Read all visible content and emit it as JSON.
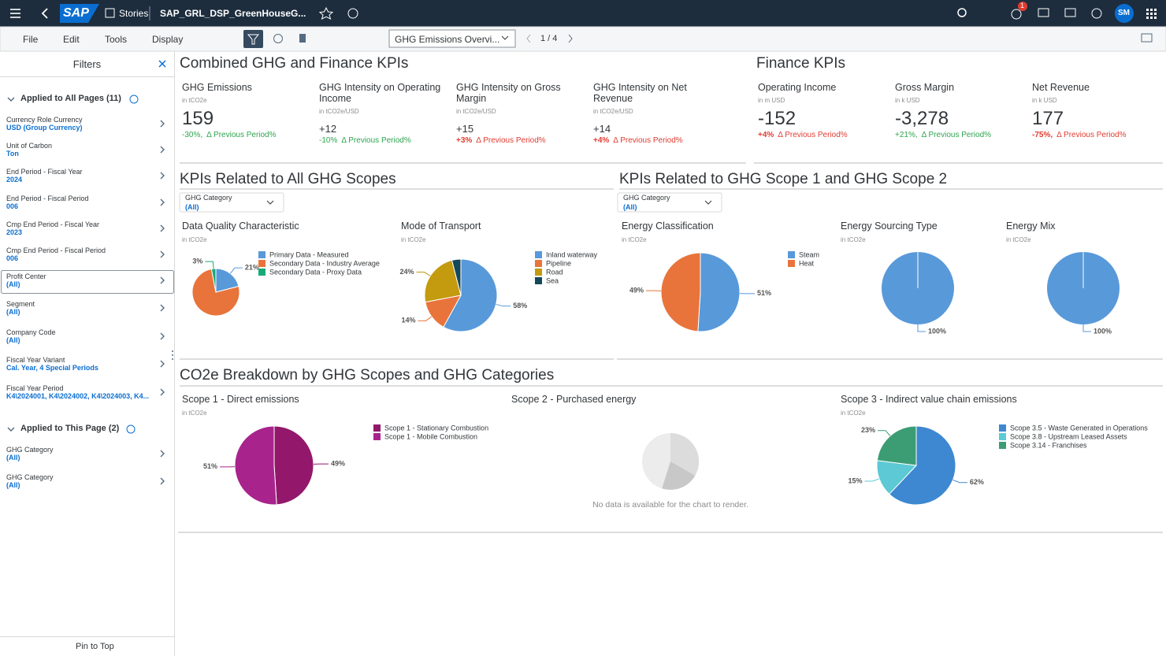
{
  "shell": {
    "brand": "SAP",
    "app": "Stories",
    "story": "SAP_GRL_DSP_GreenHouseG...",
    "badge": "1",
    "user": "SM"
  },
  "toolbar": {
    "menus": [
      "File",
      "Edit",
      "Tools",
      "Display"
    ],
    "page": "GHG Emissions Overvi...",
    "pager": "1 / 4"
  },
  "filters": {
    "title": "Filters",
    "pin": "Pin to Top",
    "groups": [
      {
        "title": "Applied to All Pages (11)",
        "items": [
          {
            "label": "Currency Role Currency",
            "value": "USD (Group Currency)"
          },
          {
            "label": "Unit of Carbon",
            "value": "Ton"
          },
          {
            "label": "End Period - Fiscal Year",
            "value": "2024"
          },
          {
            "label": "End Period - Fiscal Period",
            "value": "006"
          },
          {
            "label": "Cmp End Period - Fiscal Year",
            "value": "2023"
          },
          {
            "label": "Cmp End Period - Fiscal Period",
            "value": "006"
          },
          {
            "label": "Profit Center",
            "value": "(All)"
          },
          {
            "label": "Segment",
            "value": "(All)"
          },
          {
            "label": "Company Code",
            "value": "(All)"
          },
          {
            "label": "Fiscal Year Variant",
            "value": "Cal. Year, 4 Special Periods"
          },
          {
            "label": "Fiscal Year Period",
            "value": "K4\\2024001, K4\\2024002, K4\\2024003, K4..."
          }
        ]
      },
      {
        "title": "Applied to This Page (2)",
        "items": [
          {
            "label": "GHG Category",
            "value": "(All)"
          },
          {
            "label": "GHG Category",
            "value": "(All)"
          }
        ]
      }
    ]
  },
  "kpi_sections": [
    {
      "title": "Combined GHG and Finance KPIs",
      "tiles": [
        {
          "title": "GHG Emissions",
          "unit": "in tCO2e",
          "value": "159",
          "delta": "-30%,",
          "delta_label": "Δ Previous Period%",
          "color": "#2ea44f"
        },
        {
          "title": "GHG Intensity on Operating Income",
          "unit": "in tCO2e/USD",
          "value": "+12",
          "delta": "-10%",
          "delta_label": "Δ Previous Period%",
          "color": "#2ea44f"
        },
        {
          "title": "GHG Intensity on Gross Margin",
          "unit": "in tCO2e/USD",
          "value": "+15",
          "delta": "+3%",
          "delta_label": "Δ Previous Period%",
          "color": "#e03c31"
        },
        {
          "title": "GHG Intensity on Net Revenue",
          "unit": "in tCO2e/USD",
          "value": "+14",
          "delta": "+4%",
          "delta_label": "Δ Previous Period%",
          "color": "#e03c31"
        }
      ]
    },
    {
      "title": "Finance KPIs",
      "tiles": [
        {
          "title": "Operating Income",
          "unit": "in m USD",
          "value": "-152",
          "delta": "+4%",
          "delta_label": "Δ Previous Period%",
          "color": "#e03c31"
        },
        {
          "title": "Gross Margin",
          "unit": "in k USD",
          "value": "-3,278",
          "delta": "+21%,",
          "delta_label": "Δ Previous Period%",
          "color": "#2ea44f"
        },
        {
          "title": "Net Revenue",
          "unit": "in k USD",
          "value": "177",
          "delta": "-75%,",
          "delta_label": "Δ Previous Period%",
          "color": "#e03c31"
        }
      ]
    }
  ],
  "chart_sections": [
    {
      "title": "KPIs Related to All GHG Scopes",
      "filter": {
        "label": "GHG Category",
        "value": "(All)"
      },
      "charts": [
        {
          "type": "pie",
          "title": "Data Quality Characteristic",
          "unit": "in tCO2e",
          "categories": [
            "Primary Data - Measured",
            "Secondary Data - Industry Average",
            "Secondary Data - Proxy Data"
          ],
          "colors": [
            "#5899da",
            "#e8743b",
            "#19a979"
          ],
          "values": [
            21,
            76,
            3
          ],
          "value_labels": [
            "21%",
            null,
            "3%"
          ]
        },
        {
          "type": "pie",
          "title": "Mode of Transport",
          "unit": "in tCO2e",
          "categories": [
            "Inland waterway",
            "Pipeline",
            "Road",
            "Sea"
          ],
          "colors": [
            "#5899da",
            "#e8743b",
            "#c49a0e",
            "#13495b"
          ],
          "values": [
            58,
            14,
            24,
            4
          ],
          "value_labels": [
            "58%",
            "14%",
            "24%",
            null
          ]
        }
      ]
    },
    {
      "title": "KPIs Related to GHG Scope 1 and GHG Scope 2",
      "filter": {
        "label": "GHG Category",
        "value": "(All)"
      },
      "charts": [
        {
          "type": "pie",
          "title": "Energy Classification",
          "unit": "in tCO2e",
          "categories": [
            "Steam",
            "Heat"
          ],
          "colors": [
            "#5899da",
            "#e8743b"
          ],
          "values": [
            51,
            49
          ],
          "value_labels": [
            "51%",
            "49%"
          ]
        },
        {
          "type": "pie",
          "title": "Energy Sourcing Type",
          "unit": "in tCO2e",
          "colors": [
            "#5899da"
          ],
          "values": [
            100
          ],
          "value_labels": [
            "100%"
          ]
        },
        {
          "type": "pie",
          "title": "Energy Mix",
          "unit": "in tCO2e",
          "colors": [
            "#5899da"
          ],
          "values": [
            100
          ],
          "value_labels": [
            "100%"
          ]
        }
      ]
    },
    {
      "title": "CO2e Breakdown by GHG Scopes and GHG Categories",
      "charts": [
        {
          "type": "pie",
          "title": "Scope 1 - Direct emissions",
          "unit": "in tCO2e",
          "categories": [
            "Scope 1 - Stationary Combustion",
            "Scope 1 - Mobile Combustion"
          ],
          "colors": [
            "#93186b",
            "#a8248c"
          ],
          "values": [
            49,
            51
          ],
          "value_labels": [
            "49%",
            "51%"
          ]
        },
        {
          "type": "pie",
          "title": "Scope 2 - Purchased energy",
          "message": "No data is available for the chart to render."
        },
        {
          "type": "pie",
          "title": "Scope 3 - Indirect value chain emissions",
          "unit": "in tCO2e",
          "categories": [
            "Scope 3.5 - Waste Generated in Operations",
            "Scope 3.8 - Upstream Leased Assets",
            "Scope 3.14 - Franchises"
          ],
          "colors": [
            "#3d88d0",
            "#5cc9d4",
            "#3c9d74"
          ],
          "values": [
            62,
            15,
            23
          ],
          "value_labels": [
            "62%",
            "15%",
            "23%"
          ]
        }
      ]
    }
  ]
}
